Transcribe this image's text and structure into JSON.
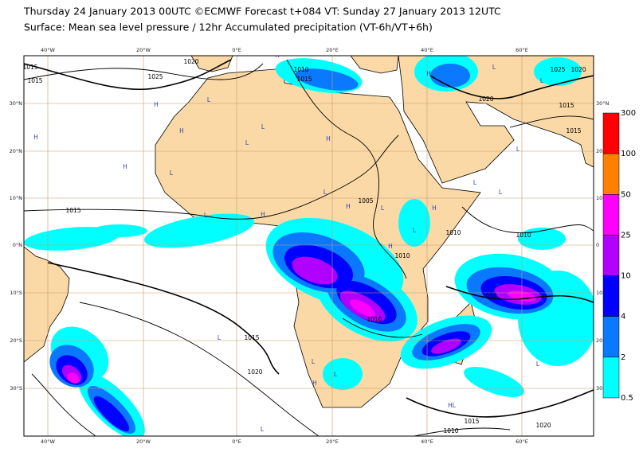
{
  "header": {
    "title": "Thursday 24 January 2013 00UTC ©ECMWF Forecast t+084 VT: Sunday 27 January 2013 12UTC",
    "subtitle": "Surface: Mean sea level pressure / 12hr Accumulated precipitation (VT-6h/VT+6h)"
  },
  "axes": {
    "top_lon": [
      "40°W",
      "20°W",
      "0°E",
      "20°E",
      "40°E",
      "60°E"
    ],
    "bottom_lon": [
      "40°W",
      "20°W",
      "0°E",
      "20°E",
      "40°E",
      "60°E"
    ],
    "left_lat": [
      "30°N",
      "20°N",
      "10°N",
      "0°N",
      "10°S",
      "20°S",
      "30°S"
    ],
    "right_lat": [
      "30°N",
      "20",
      "10",
      "0",
      "10",
      "20",
      "30"
    ]
  },
  "colorbar": {
    "labels": [
      "300",
      "100",
      "50",
      "25",
      "10",
      "4",
      "2",
      "0.5"
    ],
    "colors": [
      "#ff0000",
      "#ff7f00",
      "#ff00ff",
      "#b000ff",
      "#0000ff",
      "#0a78ff",
      "#00ffff"
    ]
  },
  "isobar_labels": [
    "1020",
    "1015",
    "1025",
    "1010",
    "1015",
    "1020",
    "1015",
    "1015",
    "1015",
    "1005",
    "1010",
    "1010",
    "1010",
    "1010",
    "1010",
    "1015",
    "1020",
    "1015",
    "1010",
    "1020",
    "1025",
    "1020",
    "1015"
  ],
  "pressure_centers": [
    "H",
    "L",
    "H",
    "L",
    "H",
    "L",
    "H",
    "L",
    "L",
    "L",
    "H",
    "L",
    "L",
    "L",
    "H",
    "H",
    "L",
    "H",
    "H",
    "H",
    "L",
    "L",
    "H",
    "L",
    "L",
    "HL",
    "L",
    "L",
    "H",
    "L",
    "L"
  ]
}
